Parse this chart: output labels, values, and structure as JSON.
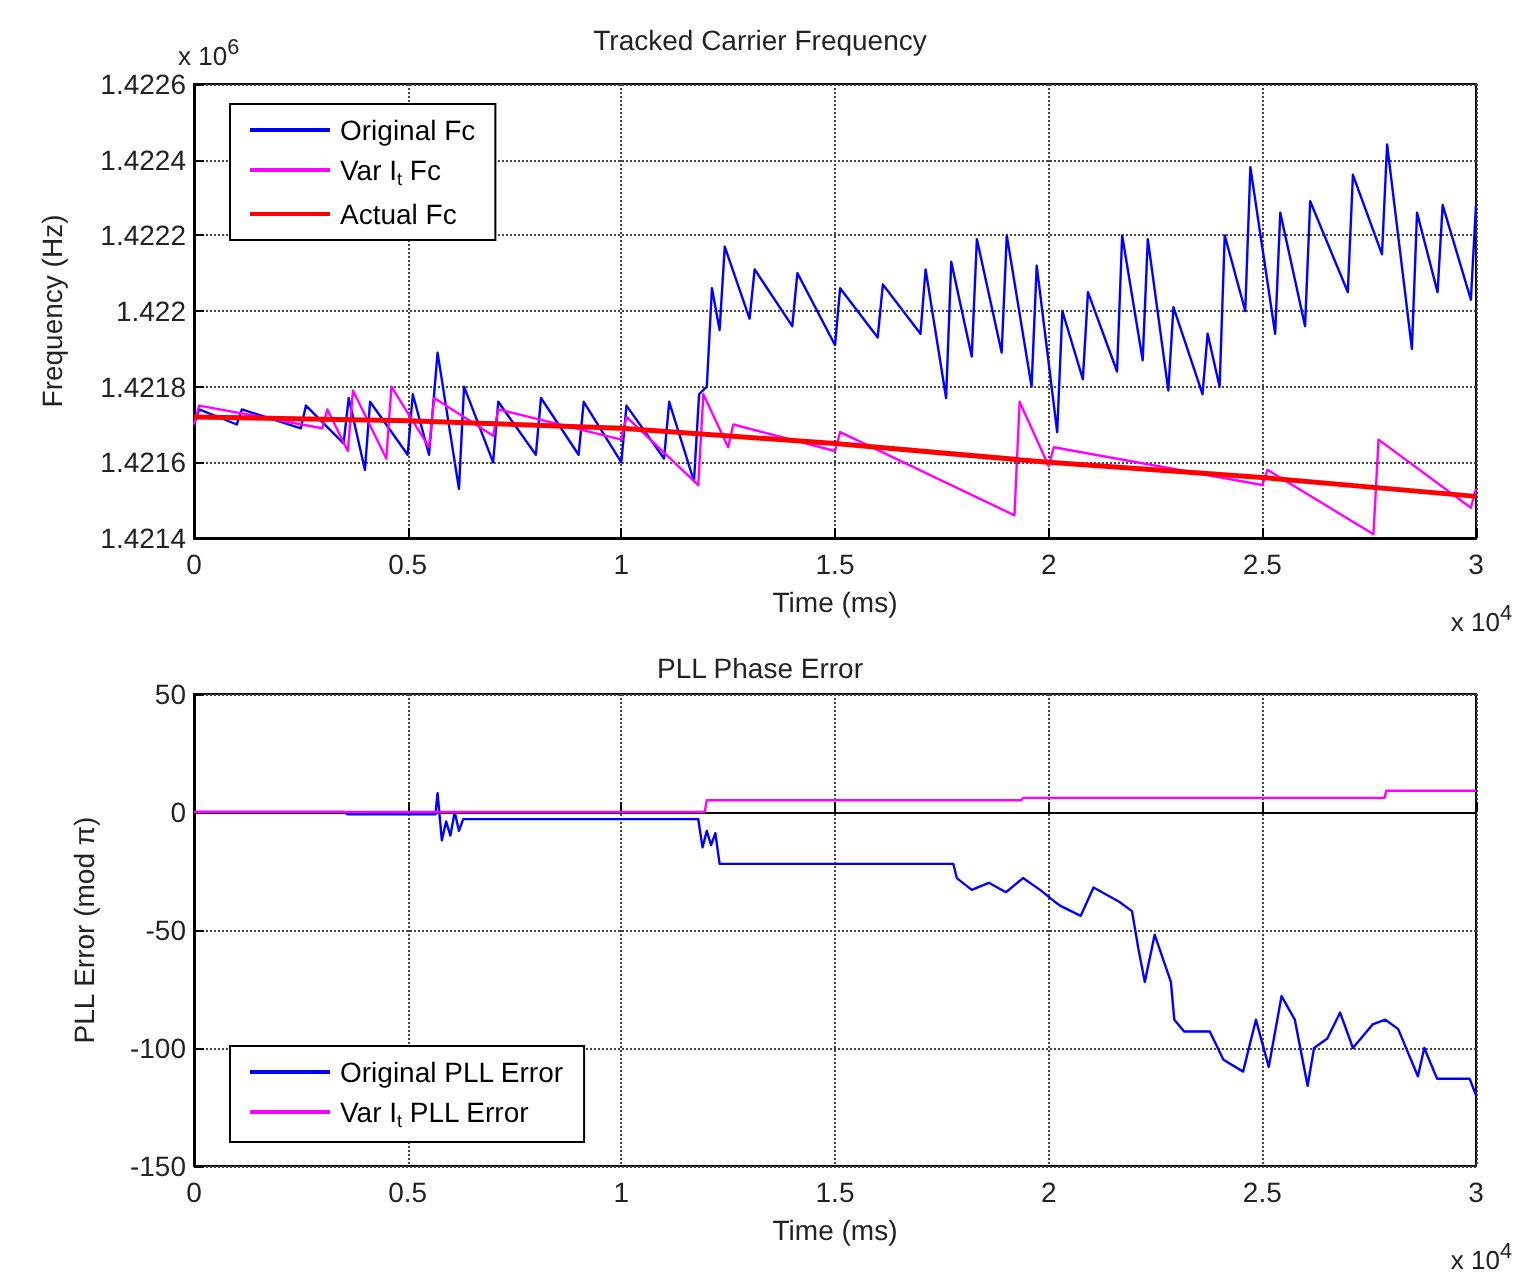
{
  "chart_data": [
    {
      "type": "line",
      "title": "Tracked Carrier Frequency",
      "xlabel": "Time (ms)",
      "ylabel": "Frequency (Hz)",
      "annotations": [
        "x 10$^{4}$",
        "x 10$^{6}$"
      ],
      "xlim": [
        0,
        3
      ],
      "xticks": [
        0,
        0.5,
        1,
        1.5,
        2,
        2.5,
        3
      ],
      "ylim": [
        1.4214,
        1.4226
      ],
      "yticks": [
        1.4214,
        1.4216,
        1.4218,
        1.422,
        1.4222,
        1.4224,
        1.4226
      ],
      "grid": true,
      "legend": "top left",
      "series": [
        {
          "name": "Original Fc",
          "color": "#0000ff",
          "x": [
            0,
            0.012,
            0.1,
            0.112,
            0.25,
            0.262,
            0.35,
            0.362,
            0.4,
            0.412,
            0.5,
            0.512,
            0.55,
            0.57,
            0.62,
            0.632,
            0.7,
            0.712,
            0.8,
            0.812,
            0.9,
            0.912,
            1,
            1.012,
            1.1,
            1.112,
            1.17,
            1.182,
            1.2,
            1.212,
            1.23,
            1.242,
            1.3,
            1.312,
            1.4,
            1.412,
            1.5,
            1.512,
            1.6,
            1.612,
            1.7,
            1.712,
            1.76,
            1.772,
            1.82,
            1.832,
            1.89,
            1.902,
            1.96,
            1.972,
            2.02,
            2.032,
            2.08,
            2.092,
            2.16,
            2.172,
            2.22,
            2.232,
            2.28,
            2.292,
            2.36,
            2.372,
            2.4,
            2.412,
            2.46,
            2.472,
            2.53,
            2.542,
            2.6,
            2.612,
            2.7,
            2.712,
            2.78,
            2.792,
            2.85,
            2.862,
            2.91,
            2.922,
            2.988,
            3
          ],
          "values": [
            1.4217,
            1.42174,
            1.4217,
            1.42174,
            1.42169,
            1.42175,
            1.42165,
            1.42177,
            1.42158,
            1.42176,
            1.42162,
            1.42178,
            1.42162,
            1.42189,
            1.42153,
            1.4218,
            1.4216,
            1.42176,
            1.42162,
            1.42177,
            1.42162,
            1.42176,
            1.4216,
            1.42175,
            1.42161,
            1.42176,
            1.42155,
            1.42178,
            1.4218,
            1.42206,
            1.42195,
            1.42217,
            1.42198,
            1.42211,
            1.42196,
            1.4221,
            1.42191,
            1.42206,
            1.42193,
            1.42207,
            1.42194,
            1.42211,
            1.42177,
            1.42213,
            1.42188,
            1.42219,
            1.42189,
            1.4222,
            1.4218,
            1.42212,
            1.42168,
            1.422,
            1.42182,
            1.42205,
            1.42184,
            1.4222,
            1.42187,
            1.42219,
            1.42179,
            1.42201,
            1.42178,
            1.42194,
            1.4218,
            1.4222,
            1.422,
            1.42238,
            1.42194,
            1.42226,
            1.42196,
            1.42229,
            1.42205,
            1.42236,
            1.42215,
            1.42244,
            1.4219,
            1.42226,
            1.42205,
            1.42228,
            1.42203,
            1.42228
          ]
        },
        {
          "name": "Var I$_{t}$ Fc",
          "color": "#ff00ff",
          "x": [
            0,
            0.012,
            0.3,
            0.312,
            0.36,
            0.372,
            0.45,
            0.462,
            0.55,
            0.562,
            0.7,
            0.712,
            1,
            1.012,
            1.18,
            1.192,
            1.25,
            1.262,
            1.5,
            1.512,
            1.92,
            1.932,
            2,
            2.012,
            2.5,
            2.512,
            2.76,
            2.772,
            2.988,
            3
          ],
          "values": [
            1.4217,
            1.42175,
            1.42169,
            1.42174,
            1.42163,
            1.42179,
            1.42161,
            1.4218,
            1.42164,
            1.42177,
            1.42167,
            1.42174,
            1.42166,
            1.42172,
            1.42154,
            1.42178,
            1.42164,
            1.4217,
            1.42163,
            1.42168,
            1.42146,
            1.42176,
            1.42159,
            1.42164,
            1.42154,
            1.42158,
            1.42141,
            1.42166,
            1.42148,
            1.42153
          ]
        },
        {
          "name": "Actual Fc",
          "color": "#ff0000",
          "x": [
            0,
            0.5,
            1,
            1.5,
            2,
            2.5,
            3
          ],
          "values": [
            1.42172,
            1.42171,
            1.42169,
            1.42165,
            1.4216,
            1.42156,
            1.42151
          ]
        }
      ]
    },
    {
      "type": "line",
      "title": "PLL Phase Error",
      "xlabel": "Time (ms)",
      "ylabel": "PLL Error (mod π)",
      "annotations": [
        "x 10$^{4}$"
      ],
      "xlim": [
        0,
        3
      ],
      "xticks": [
        0,
        0.5,
        1,
        1.5,
        2,
        2.5,
        3
      ],
      "ylim": [
        -150,
        50
      ],
      "yticks": [
        -150,
        -100,
        -50,
        0,
        50
      ],
      "grid": true,
      "legend": "bottom left",
      "series": [
        {
          "name": "Original PLL Error",
          "color": "#0000ff",
          "x": [
            0,
            0.35,
            0.36,
            0.565,
            0.57,
            0.58,
            0.59,
            0.6,
            0.61,
            0.62,
            0.63,
            1.18,
            1.19,
            1.2,
            1.21,
            1.22,
            1.23,
            1.777,
            1.785,
            1.82,
            1.86,
            1.9,
            1.94,
            1.98,
            2.014,
            2.03,
            2.075,
            2.105,
            2.165,
            2.195,
            2.21,
            2.225,
            2.248,
            2.286,
            2.294,
            2.317,
            2.377,
            2.409,
            2.455,
            2.485,
            2.515,
            2.545,
            2.576,
            2.606,
            2.621,
            2.652,
            2.682,
            2.712,
            2.758,
            2.788,
            2.818,
            2.864,
            2.879,
            2.909,
            2.985,
            3
          ],
          "values": [
            0,
            0,
            -1,
            -1,
            8,
            -12,
            -4,
            -10,
            0,
            -8,
            -3,
            -3,
            -15,
            -8,
            -14,
            -9,
            -22,
            -22,
            -28,
            -33,
            -30,
            -34,
            -28,
            -33,
            -38,
            -40,
            -44,
            -32,
            -38,
            -42,
            -58,
            -72,
            -52,
            -72,
            -88,
            -93,
            -93,
            -105,
            -110,
            -88,
            -108,
            -78,
            -88,
            -116,
            -100,
            -96,
            -85,
            -100,
            -90,
            -88,
            -92,
            -112,
            -100,
            -113,
            -113,
            -120
          ]
        },
        {
          "name": "Var I$_{t}$ PLL Error",
          "color": "#ff00ff",
          "x": [
            0,
            1.195,
            1.2,
            1.936,
            1.94,
            2.786,
            2.79,
            3
          ],
          "values": [
            0,
            0,
            5,
            5,
            6,
            6,
            9,
            9
          ]
        }
      ]
    }
  ]
}
